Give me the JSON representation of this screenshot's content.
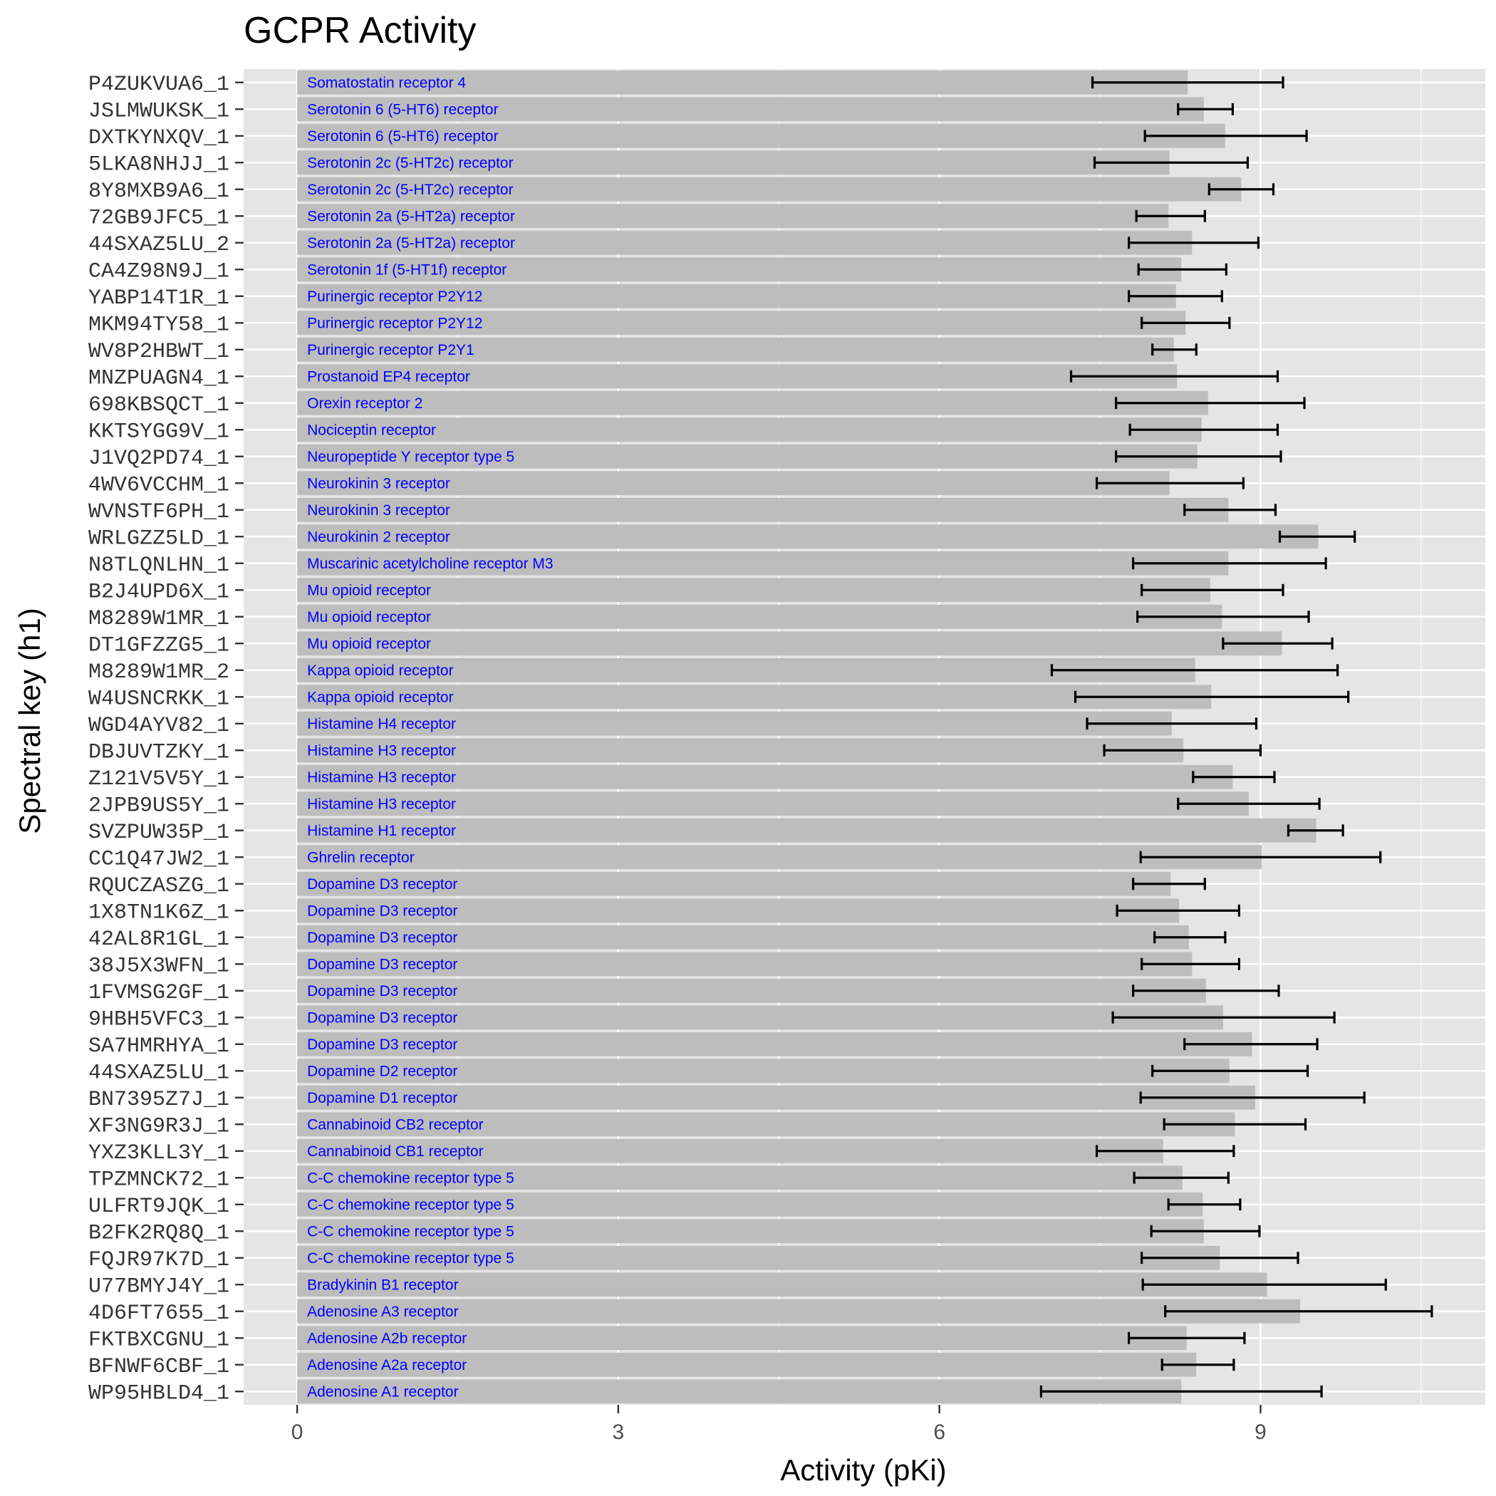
{
  "chart_data": {
    "type": "bar",
    "orientation": "horizontal",
    "title": "GCPR Activity",
    "xlabel": "Activity (pKi)",
    "ylabel": "Spectral key (h1)",
    "xlim": [
      -0.5,
      11.1
    ],
    "xticks": [
      0,
      3,
      6,
      9
    ],
    "grid": true,
    "legend": "none",
    "colors": {
      "panel": "#e5e5e5",
      "grid": "#ffffff",
      "bar": "#bdbdbd",
      "label": "#0000ff",
      "errorbar": "#000000"
    },
    "categories": [
      "P4ZUKVUA6_1",
      "JSLMWUKSK_1",
      "DXTKYNXQV_1",
      "5LKA8NHJJ_1",
      "8Y8MXB9A6_1",
      "72GB9JFC5_1",
      "44SXAZ5LU_2",
      "CA4Z98N9J_1",
      "YABP14T1R_1",
      "MKM94TY58_1",
      "WV8P2HBWT_1",
      "MNZPUAGN4_1",
      "698KBSQCT_1",
      "KKTSYGG9V_1",
      "J1VQ2PD74_1",
      "4WV6VCCHM_1",
      "WVNSTF6PH_1",
      "WRLGZZ5LD_1",
      "N8TLQNLHN_1",
      "B2J4UPD6X_1",
      "M8289W1MR_1",
      "DT1GFZZG5_1",
      "M8289W1MR_2",
      "W4USNCRKK_1",
      "WGD4AYV82_1",
      "DBJUVTZKY_1",
      "Z121V5V5Y_1",
      "2JPB9US5Y_1",
      "SVZPUW35P_1",
      "CC1Q47JW2_1",
      "RQUCZASZG_1",
      "1X8TN1K6Z_1",
      "42AL8R1GL_1",
      "38J5X3WFN_1",
      "1FVMSG2GF_1",
      "9HBH5VFC3_1",
      "SA7HMRHYA_1",
      "44SXAZ5LU_1",
      "BN7395Z7J_1",
      "XF3NG9R3J_1",
      "YXZ3KLL3Y_1",
      "TPZMNCK72_1",
      "ULFRT9JQK_1",
      "B2FK2RQ8Q_1",
      "FQJR97K7D_1",
      "U77BMYJ4Y_1",
      "4D6FT7655_1",
      "FKTBXCGNU_1",
      "BFNWF6CBF_1",
      "WP95HBLD4_1"
    ],
    "labels": [
      "Somatostatin receptor 4",
      "Serotonin 6 (5-HT6) receptor",
      "Serotonin 6 (5-HT6) receptor",
      "Serotonin 2c (5-HT2c) receptor",
      "Serotonin 2c (5-HT2c) receptor",
      "Serotonin 2a (5-HT2a) receptor",
      "Serotonin 2a (5-HT2a) receptor",
      "Serotonin 1f (5-HT1f) receptor",
      "Purinergic receptor P2Y12",
      "Purinergic receptor P2Y12",
      "Purinergic receptor P2Y1",
      "Prostanoid EP4 receptor",
      "Orexin receptor 2",
      "Nociceptin receptor",
      "Neuropeptide Y receptor type 5",
      "Neurokinin 3 receptor",
      "Neurokinin 3 receptor",
      "Neurokinin 2 receptor",
      "Muscarinic acetylcholine receptor M3",
      "Mu opioid receptor",
      "Mu opioid receptor",
      "Mu opioid receptor",
      "Kappa opioid receptor",
      "Kappa opioid receptor",
      "Histamine H4 receptor",
      "Histamine H3 receptor",
      "Histamine H3 receptor",
      "Histamine H3 receptor",
      "Histamine H1 receptor",
      "Ghrelin receptor",
      "Dopamine D3 receptor",
      "Dopamine D3 receptor",
      "Dopamine D3 receptor",
      "Dopamine D3 receptor",
      "Dopamine D3 receptor",
      "Dopamine D3 receptor",
      "Dopamine D3 receptor",
      "Dopamine D2 receptor",
      "Dopamine D1 receptor",
      "Cannabinoid CB2 receptor",
      "Cannabinoid CB1 receptor",
      "C-C chemokine receptor type 5",
      "C-C chemokine receptor type 5",
      "C-C chemokine receptor type 5",
      "C-C chemokine receptor type 5",
      "Bradykinin B1 receptor",
      "Adenosine A3 receptor",
      "Adenosine A2b receptor",
      "Adenosine A2a receptor",
      "Adenosine A1 receptor"
    ],
    "values": [
      8.32,
      8.47,
      8.67,
      8.15,
      8.82,
      8.14,
      8.36,
      8.26,
      8.21,
      8.3,
      8.19,
      8.22,
      8.51,
      8.45,
      8.41,
      8.15,
      8.7,
      9.54,
      8.7,
      8.53,
      8.64,
      9.2,
      8.39,
      8.54,
      8.17,
      8.28,
      8.74,
      8.89,
      9.52,
      9.01,
      8.16,
      8.24,
      8.33,
      8.36,
      8.49,
      8.65,
      8.92,
      8.71,
      8.95,
      8.76,
      8.09,
      8.27,
      8.46,
      8.47,
      8.62,
      9.06,
      9.37,
      8.31,
      8.4,
      8.26
    ],
    "errors": [
      [
        7.43,
        9.21
      ],
      [
        8.23,
        8.74
      ],
      [
        7.92,
        9.43
      ],
      [
        7.45,
        8.88
      ],
      [
        8.52,
        9.12
      ],
      [
        7.84,
        8.48
      ],
      [
        7.77,
        8.98
      ],
      [
        7.86,
        8.68
      ],
      [
        7.77,
        8.64
      ],
      [
        7.89,
        8.71
      ],
      [
        7.99,
        8.4
      ],
      [
        7.23,
        9.16
      ],
      [
        7.65,
        9.41
      ],
      [
        7.78,
        9.16
      ],
      [
        7.65,
        9.19
      ],
      [
        7.47,
        8.84
      ],
      [
        8.29,
        9.14
      ],
      [
        9.18,
        9.88
      ],
      [
        7.81,
        9.61
      ],
      [
        7.89,
        9.21
      ],
      [
        7.85,
        9.45
      ],
      [
        8.65,
        9.67
      ],
      [
        7.05,
        9.72
      ],
      [
        7.27,
        9.82
      ],
      [
        7.38,
        8.96
      ],
      [
        7.54,
        9.0
      ],
      [
        8.37,
        9.13
      ],
      [
        8.23,
        9.55
      ],
      [
        9.26,
        9.77
      ],
      [
        7.88,
        10.12
      ],
      [
        7.81,
        8.48
      ],
      [
        7.66,
        8.8
      ],
      [
        8.01,
        8.67
      ],
      [
        7.89,
        8.8
      ],
      [
        7.81,
        9.17
      ],
      [
        7.62,
        9.69
      ],
      [
        8.29,
        9.53
      ],
      [
        7.99,
        9.44
      ],
      [
        7.88,
        9.97
      ],
      [
        8.1,
        9.42
      ],
      [
        7.47,
        8.75
      ],
      [
        7.82,
        8.7
      ],
      [
        8.14,
        8.81
      ],
      [
        7.98,
        8.99
      ],
      [
        7.89,
        9.35
      ],
      [
        7.9,
        10.17
      ],
      [
        8.11,
        10.6
      ],
      [
        7.77,
        8.85
      ],
      [
        8.08,
        8.75
      ],
      [
        6.95,
        9.57
      ]
    ]
  }
}
